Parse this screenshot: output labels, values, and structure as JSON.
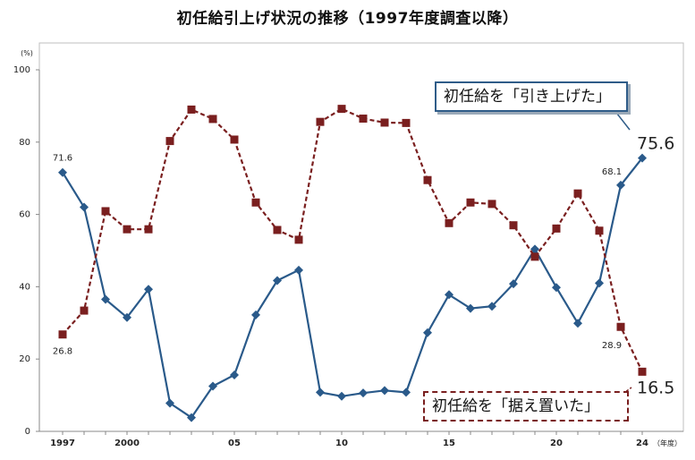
{
  "chart_data": {
    "type": "line",
    "title": "初任給引上げ状況の推移（1997年度調査以降）",
    "ylabel": "(%)",
    "xlabel": "（年度）",
    "ylim": [
      0,
      100
    ],
    "yticks": [
      0,
      20,
      40,
      60,
      80,
      100
    ],
    "x_ticks": [
      {
        "x": 1997,
        "label": "1997"
      },
      {
        "x": 2000,
        "label": "2000"
      },
      {
        "x": 2005,
        "label": "05"
      },
      {
        "x": 2010,
        "label": "10"
      },
      {
        "x": 2015,
        "label": "15"
      },
      {
        "x": 2020,
        "label": "20"
      },
      {
        "x": 2024,
        "label": "24"
      }
    ],
    "x": [
      1997,
      1998,
      1999,
      2000,
      2001,
      2002,
      2003,
      2004,
      2005,
      2006,
      2007,
      2008,
      2009,
      2010,
      2011,
      2012,
      2013,
      2014,
      2015,
      2016,
      2017,
      2018,
      2019,
      2020,
      2021,
      2022,
      2023,
      2024
    ],
    "series": [
      {
        "name": "初任給を「引き上げた」",
        "color": "#2a5a8a",
        "marker": "diamond",
        "values": [
          71.6,
          62,
          36.5,
          31.5,
          39.3,
          7.8,
          3.8,
          12.5,
          15.6,
          32.2,
          41.7,
          44.6,
          10.8,
          9.7,
          10.6,
          11.3,
          10.8,
          27.3,
          37.8,
          34,
          34.6,
          40.8,
          50.4,
          39.8,
          29.9,
          41,
          68.1,
          75.6
        ]
      },
      {
        "name": "初任給を「据え置いた」",
        "color": "#7a1f1f",
        "marker": "square",
        "values": [
          26.8,
          33.4,
          60.9,
          55.9,
          55.9,
          80.3,
          89,
          86.4,
          80.7,
          63.3,
          55.7,
          53,
          85.6,
          89.2,
          86.5,
          85.4,
          85.3,
          69.5,
          57.6,
          63.3,
          62.9,
          57,
          48.3,
          56.1,
          65.8,
          55.5,
          28.9,
          16.5
        ]
      }
    ],
    "data_labels": [
      {
        "series": 0,
        "x": 1997,
        "text": "71.6"
      },
      {
        "series": 0,
        "x": 2023,
        "text": "68.1"
      },
      {
        "series": 0,
        "x": 2024,
        "text": "75.6"
      },
      {
        "series": 1,
        "x": 1997,
        "text": "26.8"
      },
      {
        "series": 1,
        "x": 2023,
        "text": "28.9"
      },
      {
        "series": 1,
        "x": 2024,
        "text": "16.5"
      }
    ],
    "grid": false,
    "legend": "callouts"
  }
}
